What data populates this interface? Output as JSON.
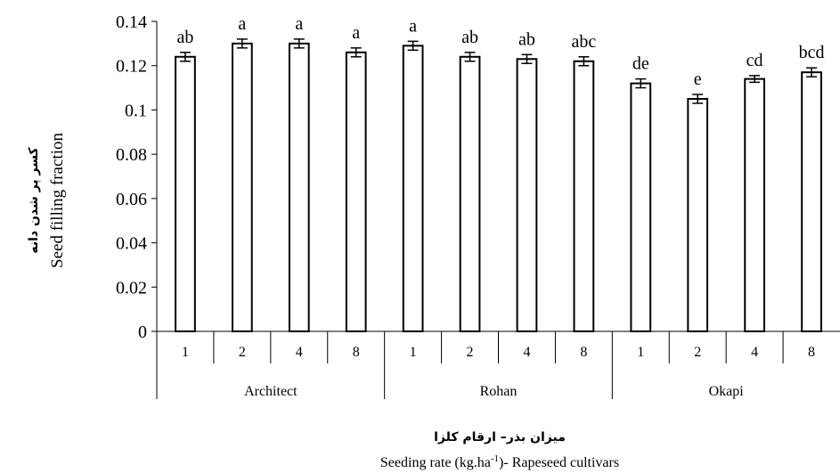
{
  "chart_data": {
    "type": "bar",
    "groups": [
      {
        "label": "Architect",
        "categories": [
          "1",
          "2",
          "4",
          "8"
        ]
      },
      {
        "label": "Rohan",
        "categories": [
          "1",
          "2",
          "4",
          "8"
        ]
      },
      {
        "label": "Okapi",
        "categories": [
          "1",
          "2",
          "4",
          "8"
        ]
      }
    ],
    "series": [
      {
        "values": [
          0.124,
          0.13,
          0.13,
          0.126,
          0.129,
          0.124,
          0.123,
          0.122,
          0.112,
          0.105,
          0.114,
          0.117
        ],
        "error": [
          0.002,
          0.002,
          0.002,
          0.002,
          0.002,
          0.002,
          0.002,
          0.002,
          0.002,
          0.002,
          0.0015,
          0.002
        ],
        "letters": [
          "ab",
          "a",
          "a",
          "a",
          "a",
          "ab",
          "ab",
          "abc",
          "de",
          "e",
          "cd",
          "bcd"
        ]
      }
    ],
    "ylim": [
      0,
      0.14
    ],
    "yticks": [
      "0",
      "0.02",
      "0.04",
      "0.06",
      "0.08",
      "0.1",
      "0.12",
      "0.14"
    ],
    "ylabel_fa": "کسر پر شدن دانه",
    "ylabel": "Seed filling  fraction",
    "xlabel_fa": "میزان بذر– ارقام کلزا",
    "xlabel": "Seeding rate (kg.ha-1)-  Rapeseed cultivars",
    "bar_fill": "#ffffff",
    "bar_stroke": "#000000",
    "grid": false,
    "legend": "none"
  }
}
